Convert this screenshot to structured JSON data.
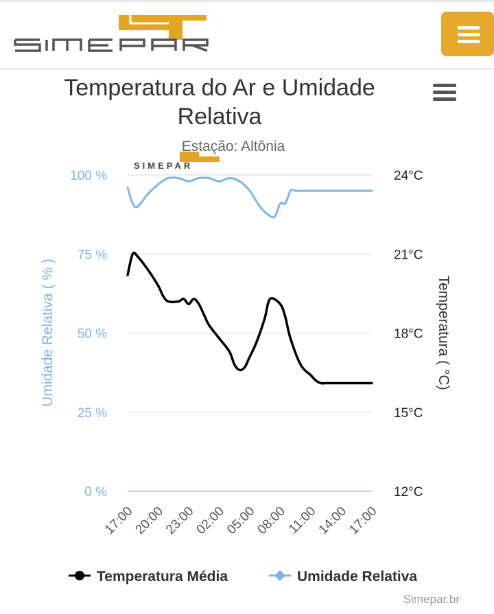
{
  "header": {
    "logo_text": "SIMEPAR",
    "menu_icon": "hamburger-icon",
    "brand_color": "#e5a92b"
  },
  "chart_data": {
    "type": "line",
    "title": "Temperatura do Ar e Umidade Relativa",
    "subtitle": "Estação: Altônia",
    "watermark_text": "SIMEPAR",
    "credits": "Simepar.br",
    "context_menu_icon": "hamburger-icon",
    "x_tick_labels": [
      "17:00",
      "20:00",
      "23:00",
      "02:00",
      "05:00",
      "08:00",
      "11:00",
      "14:00",
      "17:00"
    ],
    "y_left": {
      "label": "Umidade Relativa ( % )",
      "ticks": [
        "100 %",
        "75 %",
        "50 %",
        "25 %",
        "0 %"
      ],
      "range": [
        0,
        100
      ],
      "color": "#7cb5ec"
    },
    "y_right": {
      "label": "Temperatura ( °C)",
      "ticks": [
        "24°C",
        "21°C",
        "18°C",
        "15°C",
        "12°C"
      ],
      "range": [
        12,
        24
      ],
      "color": "#000000"
    },
    "x_range_hours": [
      0,
      24
    ],
    "series": [
      {
        "name": "Temperatura Média",
        "axis": "right",
        "color": "#000000",
        "marker": "circle",
        "x": [
          0,
          0.5,
          1,
          2,
          3,
          3.5,
          4,
          5,
          5.5,
          6,
          6.5,
          7,
          7.5,
          8,
          9,
          10,
          10.5,
          11,
          11.5,
          12,
          12.5,
          13,
          13.5,
          14,
          15,
          15.5,
          16,
          17,
          18,
          18.5,
          19,
          19.5,
          20,
          21,
          21.5,
          22,
          22.5,
          23,
          23.5,
          24
        ],
        "values": [
          20.2,
          21.0,
          20.9,
          20.4,
          19.8,
          19.4,
          19.2,
          19.2,
          19.3,
          19.1,
          19.3,
          19.1,
          18.7,
          18.3,
          17.8,
          17.3,
          16.8,
          16.6,
          16.7,
          17.1,
          17.5,
          18.0,
          18.6,
          19.3,
          19.1,
          18.6,
          17.8,
          16.8,
          16.4,
          16.2,
          16.1,
          16.1,
          16.1,
          16.1,
          16.1,
          16.1,
          16.1,
          16.1,
          16.1,
          16.1
        ]
      },
      {
        "name": "Umidade Relativa",
        "axis": "left",
        "color": "#7cb5ec",
        "marker": "diamond",
        "x": [
          0,
          0.5,
          1,
          2,
          3,
          4,
          5,
          6,
          7,
          8,
          9,
          10,
          11,
          12,
          13,
          14,
          14.5,
          15,
          15.5,
          16,
          16.5,
          17,
          17.5,
          18,
          19,
          20,
          21,
          22,
          23,
          24
        ],
        "values": [
          96,
          91,
          90,
          94,
          97,
          99,
          99,
          98,
          99,
          99,
          98,
          99,
          98,
          95,
          90,
          87,
          87,
          91,
          91,
          95,
          95,
          95,
          95,
          95,
          95,
          95,
          95,
          95,
          95,
          95
        ]
      }
    ],
    "legend": {
      "placement": "bottom-center",
      "items": [
        "Temperatura Média",
        "Umidade Relativa"
      ]
    },
    "grid": true
  }
}
